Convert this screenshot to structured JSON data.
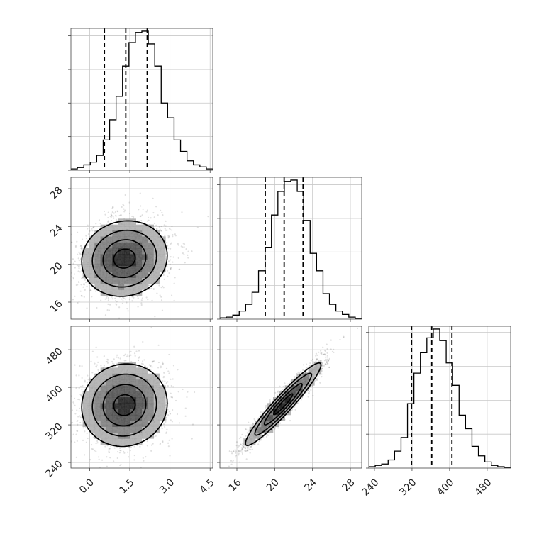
{
  "chart_data": {
    "type": "corner",
    "title": "",
    "grid": true,
    "histogram_ticks": {
      "p1": [
        0,
        0.5,
        1.0,
        1.5,
        2.0,
        2.5,
        3.0
      ],
      "p2": [
        0,
        0.5,
        1.0,
        1.5,
        2.0,
        2.5,
        3.0
      ],
      "p3": [
        0,
        0.5,
        1.0,
        1.5,
        2.0,
        2.5,
        3.0
      ]
    },
    "params": [
      {
        "key": "p1",
        "range": [
          -0.7,
          4.6
        ],
        "ticks": [
          0.0,
          1.5,
          3.0,
          4.5
        ],
        "tick_labels": [
          "0.0",
          "1.5",
          "3.0",
          "4.5"
        ],
        "quantiles": [
          0.55,
          1.35,
          2.15
        ],
        "hist_edges": [
          -0.7,
          4.6
        ],
        "hist_counts": [
          0.02,
          0.04,
          0.08,
          0.12,
          0.22,
          0.45,
          0.75,
          1.1,
          1.55,
          1.9,
          2.05,
          2.07,
          1.88,
          1.55,
          1.0,
          0.78,
          0.45,
          0.28,
          0.14,
          0.08,
          0.05,
          0.02
        ]
      },
      {
        "key": "p2",
        "range": [
          14.2,
          29.2
        ],
        "ticks": [
          16,
          20,
          24,
          28
        ],
        "tick_labels": [
          "16",
          "20",
          "24",
          "28"
        ],
        "quantiles": [
          19.0,
          21.0,
          23.0
        ],
        "hist_edges": [
          14.2,
          29.2
        ],
        "hist_counts": [
          0.02,
          0.03,
          0.06,
          0.12,
          0.22,
          0.4,
          0.72,
          1.07,
          1.55,
          1.9,
          2.05,
          2.07,
          1.9,
          1.47,
          0.98,
          0.72,
          0.38,
          0.22,
          0.12,
          0.07,
          0.03,
          0.01
        ]
      },
      {
        "key": "p3",
        "range": [
          228,
          530
        ],
        "ticks": [
          240,
          320,
          400,
          480
        ],
        "tick_labels": [
          "240",
          "320",
          "400",
          "480"
        ],
        "quantiles": [
          319,
          362,
          405
        ],
        "hist_edges": [
          228,
          530
        ],
        "hist_counts": [
          0.02,
          0.04,
          0.06,
          0.12,
          0.25,
          0.45,
          0.95,
          1.4,
          1.7,
          1.92,
          2.05,
          1.88,
          1.55,
          1.22,
          0.78,
          0.58,
          0.32,
          0.18,
          0.09,
          0.04,
          0.02,
          0.01
        ]
      }
    ],
    "pairs": [
      {
        "x": "p1",
        "y": "p2",
        "mean": [
          1.3,
          20.6
        ],
        "sd": [
          0.8,
          2.0
        ],
        "rho": 0.08,
        "n": 2600
      },
      {
        "x": "p1",
        "y": "p3",
        "mean": [
          1.3,
          362
        ],
        "sd": [
          0.8,
          44
        ],
        "rho": 0.05,
        "n": 2600
      },
      {
        "x": "p2",
        "y": "p3",
        "mean": [
          20.9,
          364
        ],
        "sd": [
          2.0,
          44
        ],
        "rho": 0.95,
        "n": 2600
      }
    ]
  }
}
